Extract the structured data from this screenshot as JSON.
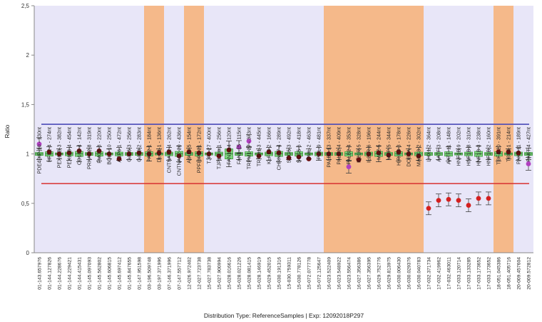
{
  "chart_data": {
    "type": "box",
    "title": "Distribution Type: ReferenceSamples | Exp: 12092018P297",
    "ylabel": "Ratio",
    "xlabel": "",
    "ylim": [
      0,
      2.5
    ],
    "yticks": [
      "0",
      "0,5",
      "1",
      "1,5",
      "2",
      "2,5"
    ],
    "upper_threshold": 1.3,
    "lower_threshold": 0.7,
    "colors": {
      "plot_bg": "#e8e6f8",
      "highlight": "#f5b98a",
      "box": "#7ed67e",
      "box_edge": "#3a9a3a",
      "point_normal": "#6a0d0d",
      "point_high": "#b040c0",
      "point_low": "#d42020",
      "upper_line": "#4a4ab8",
      "lower_line": "#d83030",
      "axis": "#888888"
    },
    "probes": [
      {
        "label": "PDE4DIP-10 - 130nt",
        "sample": "01-143.657976",
        "ratio": 1.1,
        "highlight": false,
        "status": "high"
      },
      {
        "label": "HFE2-4 - 274nt",
        "sample": "01-144.127826",
        "ratio": 1.02,
        "highlight": false,
        "status": "normal"
      },
      {
        "label": "PEX11B-3 - 382nt",
        "sample": "01-144.228676",
        "ratio": 1.0,
        "highlight": false,
        "status": "normal"
      },
      {
        "label": "PEX11B-4 - 454nt",
        "sample": "01-144.229421",
        "ratio": 1.01,
        "highlight": false,
        "status": "normal"
      },
      {
        "label": "CD160-4 - 142nt",
        "sample": "01-144.415431",
        "ratio": 1.03,
        "highlight": false,
        "status": "normal"
      },
      {
        "label": "PRKAB2-8 - 319nt",
        "sample": "01-145.097093",
        "ratio": 1.0,
        "highlight": false,
        "status": "normal"
      },
      {
        "label": "FMO5-8 - 220nt",
        "sample": "01-145.562802",
        "ratio": 1.03,
        "highlight": false,
        "status": "normal"
      },
      {
        "label": "BCL9-10 - 250nt",
        "sample": "01-145.606815",
        "ratio": 1.0,
        "highlight": false,
        "status": "normal"
      },
      {
        "label": "ACP6-1 - 472nt",
        "sample": "01-145.697412",
        "ratio": 0.95,
        "highlight": false,
        "status": "normal"
      },
      {
        "label": "GJA5-3 - 256nt",
        "sample": "01-145.847655",
        "ratio": 1.0,
        "highlight": false,
        "status": "normal"
      },
      {
        "label": "GJA8-2 - 283nt",
        "sample": "01-147.951598",
        "ratio": 1.01,
        "highlight": false,
        "status": "normal"
      },
      {
        "label": "PAK2-1 - 184nt",
        "sample": "03-196.509748",
        "ratio": 1.0,
        "highlight": true,
        "status": "normal"
      },
      {
        "label": "DLG1-1 - 136nt",
        "sample": "03-197.371996",
        "ratio": 1.01,
        "highlight": true,
        "status": "normal"
      },
      {
        "label": "CNTNAP2-4 - 262nt",
        "sample": "07-146.371996",
        "ratio": 1.02,
        "highlight": false,
        "status": "normal"
      },
      {
        "label": "CNTNAP2-20 - 436nt",
        "sample": "07-147.557712",
        "ratio": 0.98,
        "highlight": false,
        "status": "normal"
      },
      {
        "label": "ASUN-5 - 154nt",
        "sample": "12-026.972402",
        "ratio": 1.02,
        "highlight": true,
        "status": "normal"
      },
      {
        "label": "PPFIBP1-21 - 172nt",
        "sample": "12-027.723738",
        "ratio": 1.01,
        "highlight": true,
        "status": "normal"
      },
      {
        "label": "TJP1-27 - 400nt",
        "sample": "15-027.783738",
        "ratio": 1.0,
        "highlight": false,
        "status": "normal"
      },
      {
        "label": "TJP1-intr.1 - 256nt",
        "sample": "15-027.900994",
        "ratio": 0.98,
        "highlight": false,
        "status": "normal"
      },
      {
        "label": "FAN1-14 - 120nt",
        "sample": "15-028.016616",
        "ratio": 1.04,
        "highlight": false,
        "status": "normal"
      },
      {
        "label": "FAN1-15 - 115nt",
        "sample": "15-028.021226",
        "ratio": 1.07,
        "highlight": false,
        "status": "high"
      },
      {
        "label": "TRPM1-27 - 373nt",
        "sample": "15-028.081415",
        "ratio": 1.13,
        "highlight": false,
        "status": "high"
      },
      {
        "label": "TRPM1-3 - 445nt",
        "sample": "15-028.146919",
        "ratio": 0.98,
        "highlight": false,
        "status": "normal"
      },
      {
        "label": "KLF13-2 - 166nt",
        "sample": "15-029.452015",
        "ratio": 1.02,
        "highlight": false,
        "status": "normal"
      },
      {
        "label": "CHRNA7-4 - 289nt",
        "sample": "15-030.191316",
        "ratio": 1.01,
        "highlight": false,
        "status": "normal"
      },
      {
        "label": "SCG5-3 - 492nt",
        "sample": "15-030.759311",
        "ratio": 0.96,
        "highlight": false,
        "status": "normal"
      },
      {
        "label": "SCG5-6 - 418nt",
        "sample": "15-030.778126",
        "ratio": 0.97,
        "highlight": false,
        "status": "normal"
      },
      {
        "label": "PML-2 - 463nt",
        "sample": "15-072.077778",
        "ratio": 0.95,
        "highlight": false,
        "status": "normal"
      },
      {
        "label": "PML-9 - 481nt",
        "sample": "15-072.125647",
        "ratio": 1.0,
        "highlight": false,
        "status": "normal"
      },
      {
        "label": "PALB2-13 - 337nt",
        "sample": "16-023.522409",
        "ratio": 1.0,
        "highlight": true,
        "status": "normal"
      },
      {
        "label": "PALB2-4 - 409nt",
        "sample": "16-023.548922",
        "ratio": 1.0,
        "highlight": true,
        "status": "normal"
      },
      {
        "label": "PALB2-4 - 353nt",
        "sample": "16-023.556474",
        "ratio": 0.87,
        "highlight": true,
        "status": "high"
      },
      {
        "label": "IL21R-5 - 328nt",
        "sample": "16-027.356386",
        "ratio": 0.94,
        "highlight": true,
        "status": "normal"
      },
      {
        "label": "IL21R-6 - 196nt",
        "sample": "16-027.356395",
        "ratio": 1.0,
        "highlight": true,
        "status": "normal"
      },
      {
        "label": "MAZ-5 - 244nt",
        "sample": "16-029.752776",
        "ratio": 1.01,
        "highlight": true,
        "status": "normal"
      },
      {
        "label": "MVP-5 - 344nt",
        "sample": "16-029.813975",
        "ratio": 0.99,
        "highlight": true,
        "status": "normal"
      },
      {
        "label": "HIRIP3-3 - 178nt",
        "sample": "16-030.006430",
        "ratio": 1.02,
        "highlight": true,
        "status": "normal"
      },
      {
        "label": "DOC2A-4 - 226nt",
        "sample": "16-030.029376",
        "ratio": 1.0,
        "highlight": true,
        "status": "normal"
      },
      {
        "label": "MAPK3-2 - 302nt",
        "sample": "16-030.040783",
        "ratio": 0.98,
        "highlight": true,
        "status": "normal"
      },
      {
        "label": "LHX1-2 - 364nt",
        "sample": "17-032.371734",
        "ratio": 0.45,
        "highlight": false,
        "status": "low"
      },
      {
        "label": "AATF-3 - 208nt",
        "sample": "17-032.419962",
        "ratio": 0.53,
        "highlight": false,
        "status": "low"
      },
      {
        "label": "AATF-11 - 148nt",
        "sample": "17-032.463011",
        "ratio": 0.54,
        "highlight": false,
        "status": "low"
      },
      {
        "label": "HNF1B-9 - 202nt",
        "sample": "17-033.120714",
        "ratio": 0.53,
        "highlight": false,
        "status": "low"
      },
      {
        "label": "HNF1B-8 - 310nt",
        "sample": "17-033.133285",
        "ratio": 0.48,
        "highlight": false,
        "status": "low"
      },
      {
        "label": "HNF1B-3 - 238nt",
        "sample": "17-033.173652",
        "ratio": 0.55,
        "highlight": false,
        "status": "low"
      },
      {
        "label": "HNF1B-2 - 160nt",
        "sample": "17-033.173652",
        "ratio": 0.55,
        "highlight": false,
        "status": "low"
      },
      {
        "label": "TCF4-20 - 391nt",
        "sample": "18-051.045386",
        "ratio": 1.02,
        "highlight": true,
        "status": "normal"
      },
      {
        "label": "TCF4-1 - 214nt",
        "sample": "18-051.405716",
        "ratio": 1.02,
        "highlight": true,
        "status": "normal"
      },
      {
        "label": "PAKT-11 - 189nt",
        "sample": "20-009.457604",
        "ratio": 1.01,
        "highlight": false,
        "status": "normal"
      },
      {
        "label": "PAKT-4 - 427nt",
        "sample": "20-009.572812",
        "ratio": 0.9,
        "highlight": false,
        "status": "high"
      }
    ]
  }
}
